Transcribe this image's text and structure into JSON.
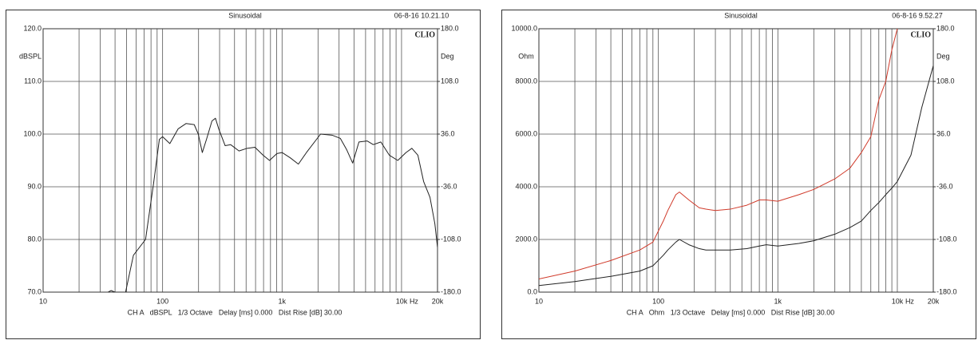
{
  "chart_data": [
    {
      "type": "line",
      "title": "Sinusoidal",
      "timestamp": "06-8-16 10.21.10",
      "logo": "CLIO",
      "ylabel": "dBSPL",
      "y2label": "Deg",
      "x_unit": "Hz",
      "footer": "CH A   dBSPL   1/3 Octave   Delay [ms] 0.000   Dist Rise [dB] 30.00",
      "log_x": true,
      "grid": true,
      "xlim": [
        10,
        20000
      ],
      "xticks": [
        10,
        100,
        {
          "value": 1000,
          "label": "1k"
        },
        {
          "value": 10000,
          "label": "10k"
        },
        {
          "value": 20000,
          "label": "20k"
        }
      ],
      "xminor_ticks": [
        20,
        30,
        40,
        50,
        60,
        70,
        80,
        90,
        200,
        300,
        400,
        500,
        600,
        700,
        800,
        900,
        2000,
        3000,
        4000,
        5000,
        6000,
        7000,
        8000,
        9000
      ],
      "ylim": [
        70,
        120
      ],
      "yticks": [
        {
          "value": 70,
          "label": "70.0"
        },
        {
          "value": 80,
          "label": "80.0"
        },
        {
          "value": 90,
          "label": "90.0"
        },
        {
          "value": 100,
          "label": "100.0"
        },
        {
          "value": 110,
          "label": "110.0"
        },
        {
          "value": 120,
          "label": "120.0"
        }
      ],
      "y2lim": [
        -180,
        180
      ],
      "y2ticks": [
        {
          "value": -180,
          "label": "-180.0"
        },
        {
          "value": -108,
          "label": "-108.0"
        },
        {
          "value": -36,
          "label": "-36.0"
        },
        {
          "value": 36,
          "label": "36.0"
        },
        {
          "value": 108,
          "label": "108.0"
        },
        {
          "value": 180,
          "label": "180.0"
        }
      ],
      "x": [
        35,
        37,
        40,
        49,
        57,
        72,
        84,
        94,
        100,
        115,
        135,
        157,
        184,
        199,
        215,
        233,
        259,
        277,
        295,
        334,
        371,
        436,
        510,
        593,
        693,
        785,
        906,
        1000,
        1170,
        1370,
        1600,
        2100,
        2620,
        3070,
        3480,
        3900,
        4400,
        5150,
        5800,
        6710,
        7900,
        9300,
        10900,
        12200,
        13700,
        15300,
        17300,
        19000,
        20000
      ],
      "series": [
        {
          "color": "#222222",
          "values": [
            70,
            70.3,
            70,
            70,
            77,
            80,
            90.6,
            99,
            99.5,
            98.2,
            101,
            102,
            101.8,
            100,
            96.5,
            99,
            102.5,
            103,
            101,
            97.8,
            98,
            96.8,
            97.3,
            97.5,
            96,
            95,
            96.3,
            96.5,
            95.5,
            94.3,
            96.5,
            100,
            99.8,
            99.2,
            97,
            94.5,
            98.5,
            98.7,
            98,
            98.5,
            96,
            95,
            96.5,
            97.3,
            96,
            91,
            88,
            83,
            78.5
          ]
        }
      ]
    },
    {
      "type": "line",
      "title": "Sinusoidal",
      "timestamp": "06-8-16 9.52.27",
      "logo": "CLIO",
      "ylabel": "Ohm",
      "y2label": "Deg",
      "x_unit": "Hz",
      "footer": "CH A   Ohm   1/3 Octave   Delay [ms] 0.000   Dist Rise [dB] 30.00",
      "log_x": true,
      "grid": true,
      "xlim": [
        10,
        20000
      ],
      "xticks": [
        10,
        100,
        {
          "value": 1000,
          "label": "1k"
        },
        {
          "value": 10000,
          "label": "10k"
        },
        {
          "value": 20000,
          "label": "20k"
        }
      ],
      "xminor_ticks": [
        20,
        30,
        40,
        50,
        60,
        70,
        80,
        90,
        200,
        300,
        400,
        500,
        600,
        700,
        800,
        900,
        2000,
        3000,
        4000,
        5000,
        6000,
        7000,
        8000,
        9000
      ],
      "ylim": [
        0,
        10000
      ],
      "yticks": [
        {
          "value": 0,
          "label": "0.0"
        },
        {
          "value": 2000,
          "label": "2000.0"
        },
        {
          "value": 4000,
          "label": "4000.0"
        },
        {
          "value": 6000,
          "label": "6000.0"
        },
        {
          "value": 8000,
          "label": "8000.0"
        },
        {
          "value": 10000,
          "label": "10000.0"
        }
      ],
      "y2lim": [
        -180,
        180
      ],
      "y2ticks": [
        {
          "value": -180,
          "label": "-180.0"
        },
        {
          "value": -108,
          "label": "-108.0"
        },
        {
          "value": -36,
          "label": "-36.0"
        },
        {
          "value": 36,
          "label": "36.0"
        },
        {
          "value": 108,
          "label": "108.0"
        },
        {
          "value": 180,
          "label": "180.0"
        }
      ],
      "x": [
        10,
        20,
        40,
        70,
        90,
        110,
        120,
        140,
        150,
        180,
        220,
        250,
        300,
        400,
        550,
        700,
        800,
        1000,
        1500,
        2000,
        3000,
        4000,
        5000,
        6000,
        7000,
        8000,
        9000,
        10000,
        13000,
        16000,
        20000
      ],
      "series": [
        {
          "color": "#d03a2a",
          "values": [
            500,
            800,
            1200,
            1600,
            1900,
            2700,
            3100,
            3700,
            3800,
            3500,
            3200,
            3150,
            3100,
            3150,
            3300,
            3500,
            3500,
            3450,
            3700,
            3900,
            4300,
            4700,
            5300,
            5900,
            7300,
            8000,
            9200,
            10000,
            null,
            null,
            null
          ]
        },
        {
          "color": "#222222",
          "values": [
            250,
            400,
            600,
            800,
            1000,
            1400,
            1600,
            1900,
            2000,
            1800,
            1650,
            1600,
            1600,
            1600,
            1650,
            1750,
            1800,
            1750,
            1850,
            1950,
            2200,
            2450,
            2700,
            3100,
            3400,
            3700,
            3950,
            4200,
            5200,
            7000,
            8600
          ]
        }
      ]
    }
  ]
}
